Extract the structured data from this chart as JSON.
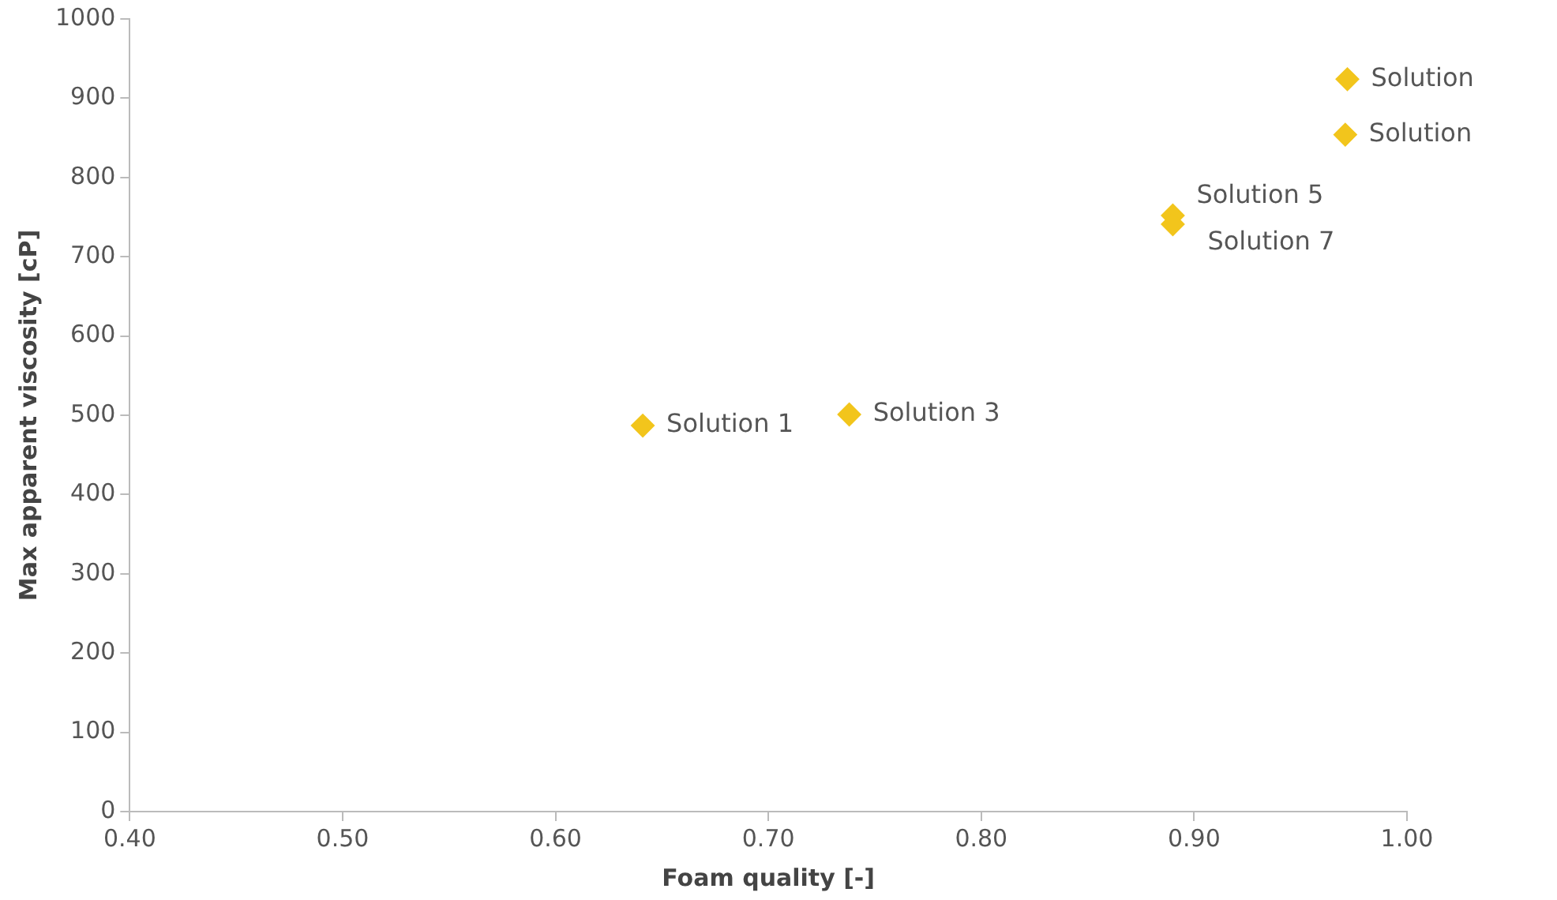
{
  "chart_data": {
    "type": "scatter",
    "xlabel": "Foam quality [-]",
    "ylabel": "Max apparent viscosity [cP]",
    "x": [
      0.641,
      0.738,
      0.89,
      0.89,
      0.972,
      0.971
    ],
    "series": [
      {
        "color": "#f2c51c",
        "values": [
          487,
          501,
          752,
          741,
          924,
          854
        ]
      }
    ],
    "marker": "diamond",
    "grid": false,
    "legend": false,
    "xlim": [
      0.4,
      1.0
    ],
    "xticks": [
      {
        "value": 0.4,
        "label": "0.40"
      },
      {
        "value": 0.5,
        "label": "0.50"
      },
      {
        "value": 0.6,
        "label": "0.60"
      },
      {
        "value": 0.7,
        "label": "0.70"
      },
      {
        "value": 0.8,
        "label": "0.80"
      },
      {
        "value": 0.9,
        "label": "0.90"
      },
      {
        "value": 1.0,
        "label": "1.00"
      }
    ],
    "ylim": [
      0,
      1000
    ],
    "yticks": [
      0,
      100,
      200,
      300,
      400,
      500,
      600,
      700,
      800,
      900,
      1000
    ],
    "annotations": [
      {
        "text": "Solution 1",
        "x": 0.641,
        "y": 487
      },
      {
        "text": "Solution 3",
        "x": 0.738,
        "y": 501
      },
      {
        "text": "Solution 5",
        "x": 0.89,
        "y": 752
      },
      {
        "text": "Solution 7",
        "x": 0.89,
        "y": 741
      },
      {
        "text": "Solution",
        "x": 0.972,
        "y": 924
      },
      {
        "text": "Solution",
        "x": 0.971,
        "y": 854
      }
    ]
  }
}
